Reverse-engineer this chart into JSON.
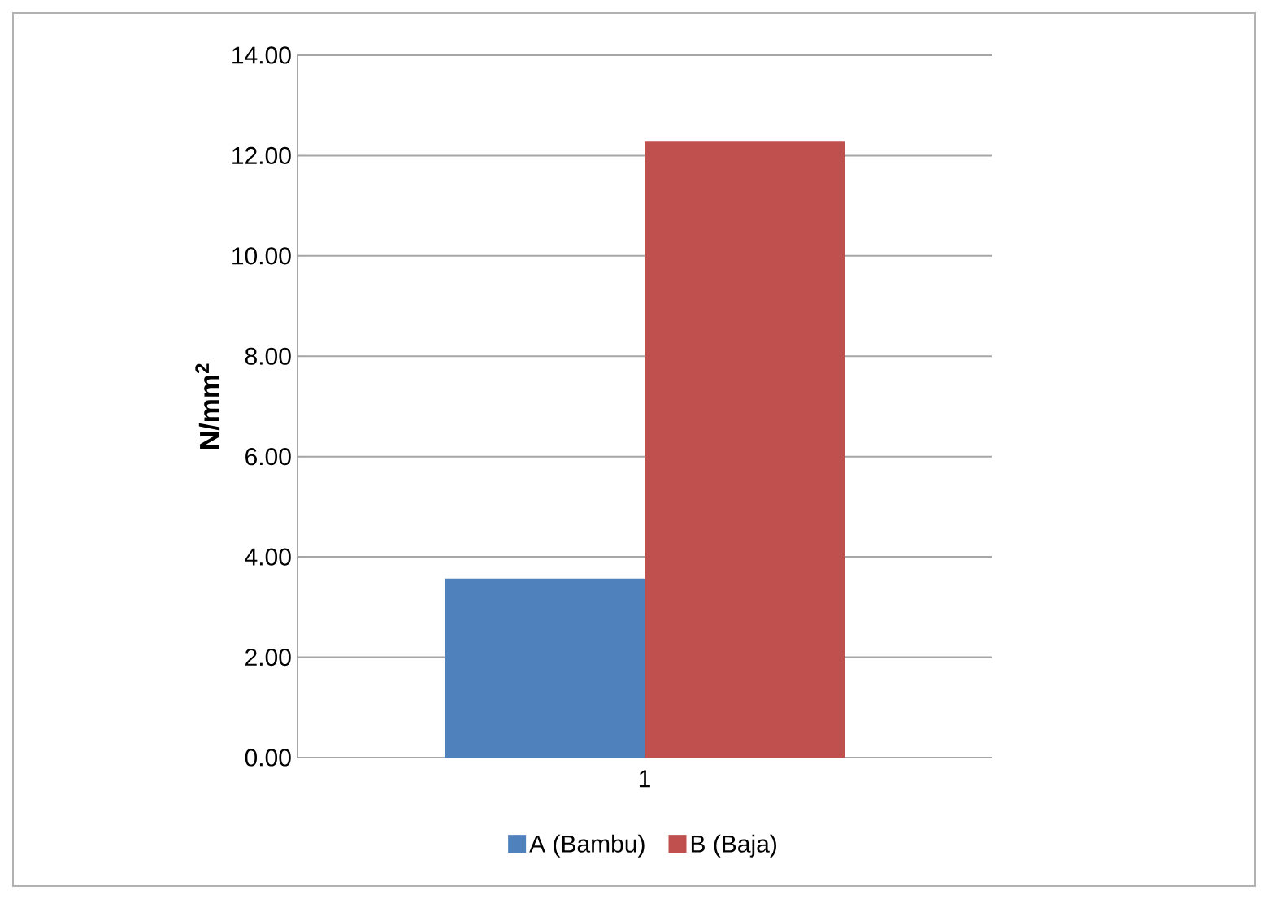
{
  "chart_data": {
    "type": "bar",
    "ylabel": "**N/mm$^{2}$**",
    "categories": [
      "1"
    ],
    "series": [
      {
        "name": "A (Bambu)",
        "color": "#4f81bd",
        "values": [
          3.57
        ]
      },
      {
        "name": "B (Baja)",
        "color": "#c0504d",
        "values": [
          12.28
        ]
      }
    ],
    "ylim": [
      0,
      14
    ],
    "yticks": [
      {
        "value": 0,
        "label": "0.00"
      },
      {
        "value": 2,
        "label": "2.00"
      },
      {
        "value": 4,
        "label": "4.00"
      },
      {
        "value": 6,
        "label": "6.00"
      },
      {
        "value": 8,
        "label": "8.00"
      },
      {
        "value": 10,
        "label": "10.00"
      },
      {
        "value": 12,
        "label": "12.00"
      },
      {
        "value": 14,
        "label": "14.00"
      }
    ],
    "grid": "y",
    "legend": "bottom"
  }
}
